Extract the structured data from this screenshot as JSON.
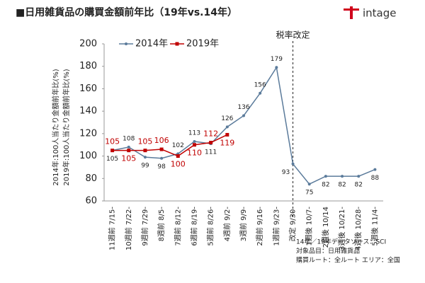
{
  "chart_data": {
    "type": "line",
    "title": "■日用雑貨品の購買金額前年比（19年vs.14年）",
    "logo": "intage",
    "y_axis_labels": [
      "2014年:100人当たり金額前年比(%)",
      "2019年:100人当たり金額前年比(%)"
    ],
    "annotation": "税率改定",
    "annotation_category": 11,
    "notes": [
      "14年／19年データソース：SCI",
      "対象品目：日用雑貨品",
      "購買ルート：全ルート エリア：全国"
    ],
    "categories": [
      "11週前 7/15-",
      "10週前 7/22-",
      "9週前 7/29-",
      "8週前 8/5-",
      "7週前 8/12-",
      "6週前 8/19-",
      "5週前 8/26-",
      "4週前 9/2-",
      "3週前 9/9-",
      "2週前 9/16-",
      "1週前 9/23-",
      "改定 9/30-",
      "1週後 10/7-",
      "2週後 10/14",
      "3週後 10/21-",
      "4週後 10/28-",
      "5週後 11/4-"
    ],
    "series": [
      {
        "name": "2014年",
        "color": "#5b7b9b",
        "values": [
          105,
          108,
          99,
          98,
          102,
          113,
          111,
          126,
          136,
          156,
          179,
          93,
          75,
          82,
          82,
          82,
          88
        ]
      },
      {
        "name": "2019年",
        "color": "#c00000",
        "values": [
          105,
          105,
          105,
          106,
          100,
          110,
          112,
          119,
          null,
          null,
          null,
          null,
          null,
          null,
          null,
          null,
          null
        ]
      }
    ],
    "ylim": [
      60,
      200
    ],
    "yticks": [
      60,
      80,
      100,
      120,
      140,
      160,
      180,
      200
    ],
    "grid": false
  }
}
